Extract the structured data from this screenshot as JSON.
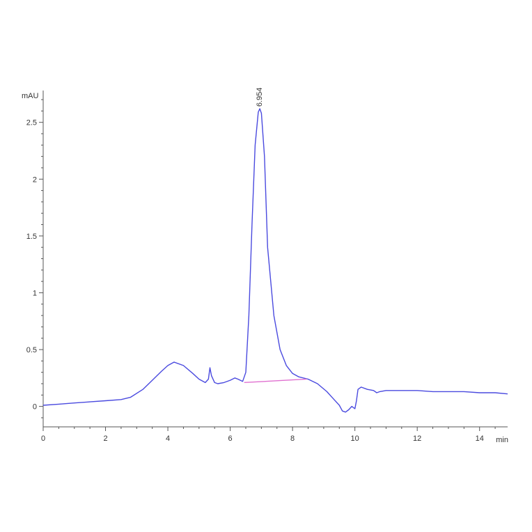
{
  "chart_data": {
    "type": "line",
    "title": "",
    "xlabel": "min",
    "ylabel": "mAU",
    "xlim": [
      0,
      14.9
    ],
    "ylim": [
      -0.18,
      2.78
    ],
    "x_ticks": [
      0,
      2,
      4,
      6,
      8,
      10,
      12,
      14
    ],
    "x_tick_labels": [
      "0",
      "2",
      "4",
      "6",
      "8",
      "10",
      "12",
      "14"
    ],
    "y_ticks": [
      0,
      0.5,
      1,
      1.5,
      2,
      2.5
    ],
    "y_tick_labels": [
      "0",
      "0.5",
      "1",
      "1.5",
      "2",
      "2.5"
    ],
    "grid": false,
    "series": [
      {
        "name": "",
        "color": "#4a4adf",
        "x": [
          0,
          0.5,
          1,
          1.5,
          2,
          2.5,
          2.8,
          3.2,
          3.5,
          3.8,
          4.0,
          4.2,
          4.5,
          4.8,
          5.0,
          5.2,
          5.3,
          5.35,
          5.4,
          5.5,
          5.6,
          5.8,
          6.0,
          6.15,
          6.25,
          6.4,
          6.5,
          6.6,
          6.7,
          6.8,
          6.9,
          6.95,
          7.0,
          7.1,
          7.2,
          7.4,
          7.6,
          7.8,
          8.0,
          8.2,
          8.5,
          8.8,
          9.1,
          9.3,
          9.5,
          9.6,
          9.7,
          9.8,
          9.9,
          9.95,
          10.0,
          10.05,
          10.1,
          10.2,
          10.4,
          10.6,
          10.7,
          10.8,
          11.0,
          11.5,
          12.0,
          12.5,
          13.0,
          13.5,
          14.0,
          14.5,
          14.9
        ],
        "y": [
          0.01,
          0.02,
          0.03,
          0.04,
          0.05,
          0.06,
          0.08,
          0.15,
          0.23,
          0.31,
          0.36,
          0.39,
          0.36,
          0.29,
          0.24,
          0.21,
          0.24,
          0.34,
          0.27,
          0.21,
          0.2,
          0.21,
          0.23,
          0.25,
          0.24,
          0.22,
          0.3,
          0.8,
          1.6,
          2.3,
          2.59,
          2.62,
          2.58,
          2.2,
          1.4,
          0.8,
          0.5,
          0.36,
          0.29,
          0.26,
          0.24,
          0.2,
          0.13,
          0.07,
          0.01,
          -0.04,
          -0.05,
          -0.03,
          0.0,
          -0.01,
          -0.02,
          0.05,
          0.15,
          0.17,
          0.15,
          0.14,
          0.12,
          0.13,
          0.14,
          0.14,
          0.14,
          0.13,
          0.13,
          0.13,
          0.12,
          0.12,
          0.11
        ]
      }
    ],
    "baseline": {
      "color": "#e070d0",
      "x": [
        6.45,
        8.45
      ],
      "y": [
        0.21,
        0.24
      ]
    },
    "peak_label": {
      "text": "6.954",
      "x": 6.95,
      "y": 2.62
    }
  }
}
